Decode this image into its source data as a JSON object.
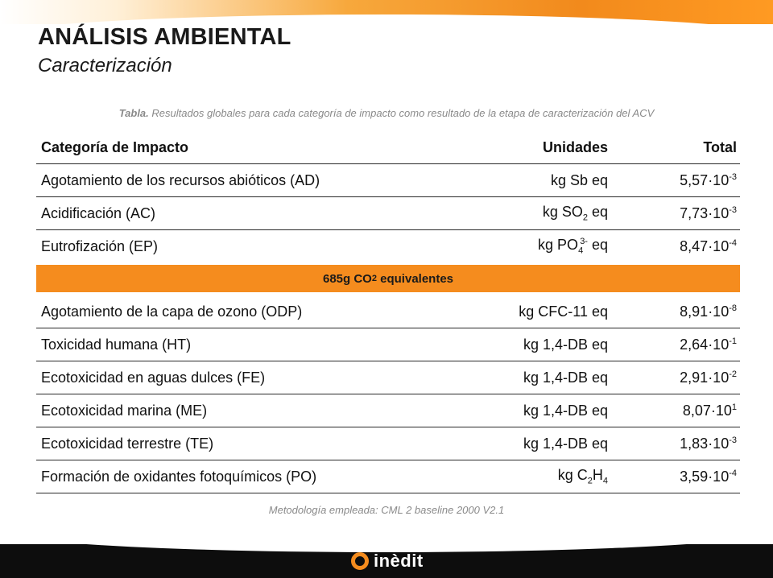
{
  "header": {
    "title": "ANÁLISIS AMBIENTAL",
    "subtitle": "Caracterización"
  },
  "caption": {
    "prefix": "Tabla.",
    "text": " Resultados globales para cada categoría de impacto como resultado de la etapa de caracterización del ACV"
  },
  "table": {
    "headers": [
      "Categoría de Impacto",
      "Unidades",
      "Total"
    ],
    "rows_top": [
      {
        "category": "Agotamiento de los recursos abióticos (AD)",
        "unit": "kg Sb eq",
        "mant": "5,57·10",
        "exp": "-3"
      },
      {
        "category": "Acidificación (AC)",
        "unit_pre": "kg SO",
        "unit_sub": "2",
        "unit_post": " eq",
        "mant": "7,73·10",
        "exp": "-3"
      },
      {
        "category": "Eutrofización (EP)",
        "unit_pre": "kg PO",
        "unit_sub": "4",
        "unit_sup": "3-",
        "unit_post": " eq",
        "mant": "8,47·10",
        "exp": "-4"
      }
    ],
    "highlight": {
      "pre": "685g CO",
      "sub": "2",
      "post": " equivalentes"
    },
    "rows_bottom": [
      {
        "category": "Agotamiento de la capa de ozono (ODP)",
        "unit": "kg CFC-11 eq",
        "mant": "8,91·10",
        "exp": "-8"
      },
      {
        "category": "Toxicidad humana (HT)",
        "unit": "kg 1,4-DB eq",
        "mant": "2,64·10",
        "exp": "-1"
      },
      {
        "category": "Ecotoxicidad en aguas dulces (FE)",
        "unit": "kg 1,4-DB eq",
        "mant": "2,91·10",
        "exp": "-2"
      },
      {
        "category": "Ecotoxicidad marina (ME)",
        "unit": "kg 1,4-DB eq",
        "mant": "8,07·10",
        "exp": "1"
      },
      {
        "category": "Ecotoxicidad terrestre (TE)",
        "unit": "kg 1,4-DB eq",
        "mant": "1,83·10",
        "exp": "-3"
      },
      {
        "category": "Formación de oxidantes fotoquímicos (PO)",
        "unit_pre": "kg C",
        "unit_sub": "2",
        "unit_mid": "H",
        "unit_sub2": "4",
        "mant": "3,59·10",
        "exp": "-4"
      }
    ]
  },
  "footnote": "Metodología empleada: CML 2 baseline 2000 V2.1",
  "logo": {
    "text": "inèdit",
    "icon": "orange-ring-icon"
  }
}
